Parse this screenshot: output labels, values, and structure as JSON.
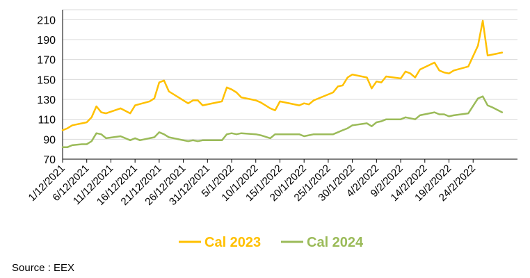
{
  "chart_data": {
    "type": "line",
    "title": "",
    "xlabel": "",
    "ylabel": "",
    "ylim": [
      70,
      220
    ],
    "y_ticks": [
      70,
      90,
      110,
      130,
      150,
      170,
      190,
      210
    ],
    "grid": "horizontal",
    "legend_position": "bottom",
    "x_ticks": [
      "1/12/2021",
      "6/12/2021",
      "11/12/2021",
      "16/12/2021",
      "21/12/2021",
      "26/12/2021",
      "31/12/2021",
      "5/1/2022",
      "10/1/2022",
      "15/1/2022",
      "20/1/2022",
      "25/1/2022",
      "30/1/2022",
      "4/2/2022",
      "9/2/2022",
      "14/2/2022",
      "19/2/2022",
      "24/2/2022"
    ],
    "x_tick_days": [
      0,
      5,
      10,
      15,
      20,
      25,
      30,
      35,
      40,
      45,
      50,
      55,
      60,
      65,
      70,
      75,
      80,
      85
    ],
    "x_range_days": [
      0,
      89
    ],
    "x_day_zero": "2021-12-01",
    "series": [
      {
        "name": "Cal 2023",
        "color": "#FFC000",
        "points": [
          [
            0,
            99
          ],
          [
            1,
            101
          ],
          [
            2,
            104
          ],
          [
            5,
            107
          ],
          [
            6,
            112
          ],
          [
            7,
            123
          ],
          [
            8,
            117
          ],
          [
            9,
            116
          ],
          [
            12,
            121
          ],
          [
            14,
            116
          ],
          [
            15,
            124
          ],
          [
            18,
            128
          ],
          [
            19,
            131
          ],
          [
            20,
            147
          ],
          [
            21,
            149
          ],
          [
            22,
            138
          ],
          [
            25,
            129
          ],
          [
            26,
            126
          ],
          [
            27,
            129
          ],
          [
            28,
            129
          ],
          [
            29,
            124
          ],
          [
            33,
            128
          ],
          [
            34,
            142
          ],
          [
            35,
            140
          ],
          [
            36,
            137
          ],
          [
            37,
            132
          ],
          [
            40,
            129
          ],
          [
            41,
            127
          ],
          [
            43,
            121
          ],
          [
            44,
            119
          ],
          [
            45,
            128
          ],
          [
            49,
            124
          ],
          [
            50,
            126
          ],
          [
            51,
            125
          ],
          [
            52,
            129
          ],
          [
            56,
            137
          ],
          [
            57,
            143
          ],
          [
            58,
            144
          ],
          [
            59,
            152
          ],
          [
            60,
            155
          ],
          [
            63,
            152
          ],
          [
            64,
            141
          ],
          [
            65,
            148
          ],
          [
            66,
            147
          ],
          [
            67,
            153
          ],
          [
            70,
            151
          ],
          [
            71,
            158
          ],
          [
            72,
            156
          ],
          [
            73,
            152
          ],
          [
            74,
            160
          ],
          [
            77,
            167
          ],
          [
            78,
            159
          ],
          [
            79,
            157
          ],
          [
            80,
            156
          ],
          [
            81,
            159
          ],
          [
            84,
            163
          ],
          [
            86,
            184
          ],
          [
            87,
            209
          ],
          [
            88,
            174
          ],
          [
            89,
            175
          ],
          [
            91,
            177
          ]
        ]
      },
      {
        "name": "Cal 2024",
        "color": "#9BBB59",
        "points": [
          [
            0,
            82
          ],
          [
            1,
            82
          ],
          [
            2,
            84
          ],
          [
            4,
            85
          ],
          [
            5,
            85
          ],
          [
            6,
            88
          ],
          [
            7,
            96
          ],
          [
            8,
            95
          ],
          [
            9,
            91
          ],
          [
            12,
            93
          ],
          [
            14,
            89
          ],
          [
            15,
            91
          ],
          [
            16,
            89
          ],
          [
            18,
            91
          ],
          [
            19,
            92
          ],
          [
            20,
            97
          ],
          [
            21,
            95
          ],
          [
            22,
            92
          ],
          [
            25,
            89
          ],
          [
            26,
            88
          ],
          [
            27,
            89
          ],
          [
            28,
            88
          ],
          [
            29,
            89
          ],
          [
            33,
            89
          ],
          [
            34,
            95
          ],
          [
            35,
            96
          ],
          [
            36,
            95
          ],
          [
            37,
            96
          ],
          [
            40,
            95
          ],
          [
            41,
            94
          ],
          [
            43,
            91
          ],
          [
            44,
            95
          ],
          [
            49,
            95
          ],
          [
            50,
            93
          ],
          [
            51,
            94
          ],
          [
            52,
            95
          ],
          [
            56,
            95
          ],
          [
            57,
            97
          ],
          [
            58,
            99
          ],
          [
            59,
            101
          ],
          [
            60,
            104
          ],
          [
            63,
            106
          ],
          [
            64,
            103
          ],
          [
            65,
            107
          ],
          [
            66,
            108
          ],
          [
            67,
            110
          ],
          [
            70,
            110
          ],
          [
            71,
            112
          ],
          [
            72,
            111
          ],
          [
            73,
            110
          ],
          [
            74,
            114
          ],
          [
            77,
            117
          ],
          [
            78,
            115
          ],
          [
            79,
            115
          ],
          [
            80,
            113
          ],
          [
            81,
            114
          ],
          [
            84,
            116
          ],
          [
            86,
            131
          ],
          [
            87,
            133
          ],
          [
            88,
            124
          ],
          [
            89,
            122
          ],
          [
            91,
            117
          ]
        ]
      }
    ]
  },
  "legend": {
    "items": [
      {
        "label": "Cal 2023",
        "color": "#FFC000"
      },
      {
        "label": "Cal 2024",
        "color": "#9BBB59"
      }
    ]
  },
  "source_text": "Source : EEX"
}
